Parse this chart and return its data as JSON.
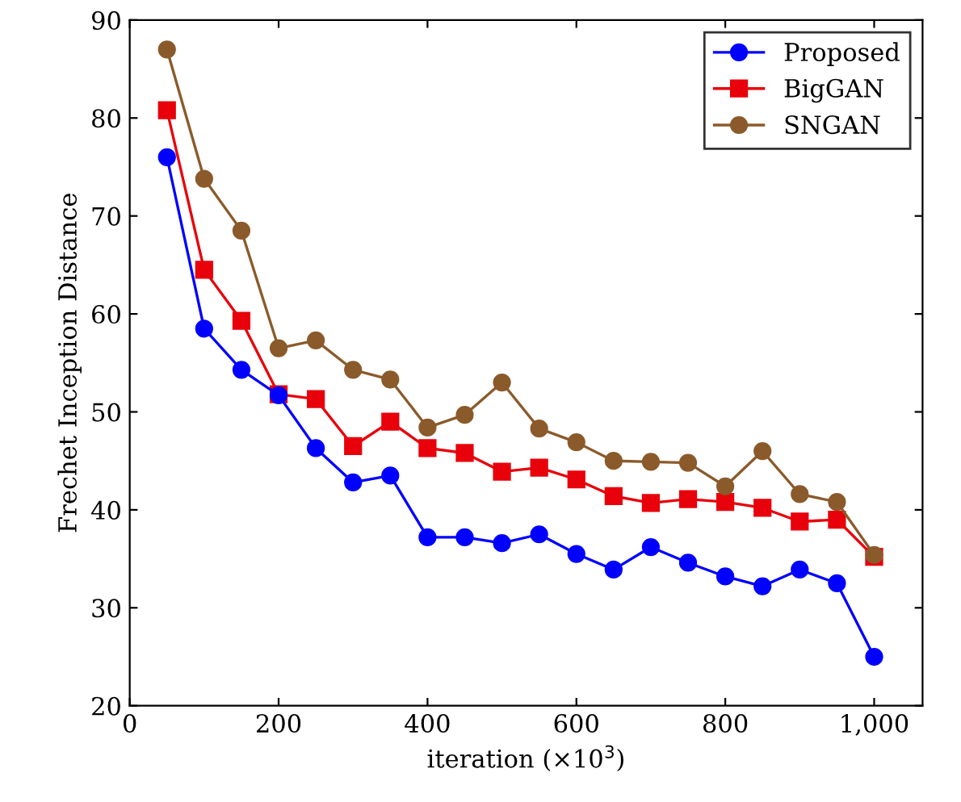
{
  "chart_data": {
    "type": "line",
    "xlabel": "iteration (×10$^{3}$)",
    "ylabel": "Frechet Inception Distance",
    "x": [
      50,
      100,
      150,
      200,
      250,
      300,
      350,
      400,
      450,
      500,
      550,
      600,
      650,
      700,
      750,
      800,
      850,
      900,
      950,
      1000
    ],
    "xlim": [
      0,
      1065
    ],
    "xticks": [
      0,
      200,
      400,
      600,
      800,
      {
        "value": 1000,
        "label": "1,000"
      }
    ],
    "ylim": [
      20,
      90
    ],
    "yticks": [
      20,
      30,
      40,
      50,
      60,
      70,
      80,
      90
    ],
    "legend": "top right",
    "grid": false,
    "series": [
      {
        "name": "Proposed",
        "color": "#0000ff",
        "marker": "circle",
        "values": [
          76,
          58.5,
          54.3,
          51.7,
          46.3,
          42.8,
          43.5,
          37.2,
          37.2,
          36.6,
          37.5,
          35.5,
          33.9,
          36.2,
          34.6,
          33.2,
          32.2,
          33.9,
          32.5,
          25
        ]
      },
      {
        "name": "BigGAN",
        "color": "#e8000b",
        "marker": "square",
        "values": [
          80.8,
          64.5,
          59.3,
          51.8,
          51.3,
          46.5,
          49,
          46.3,
          45.8,
          43.9,
          44.3,
          43.1,
          41.4,
          40.7,
          41.1,
          40.8,
          40.2,
          38.8,
          39,
          35.2
        ]
      },
      {
        "name": "SNGAN",
        "color": "#8b5a2b",
        "marker": "circle",
        "values": [
          87,
          73.8,
          68.5,
          56.5,
          57.3,
          54.3,
          53.3,
          48.4,
          49.7,
          53,
          48.3,
          46.9,
          45,
          44.9,
          44.8,
          42.4,
          46,
          41.6,
          40.8,
          35.4
        ]
      }
    ]
  }
}
